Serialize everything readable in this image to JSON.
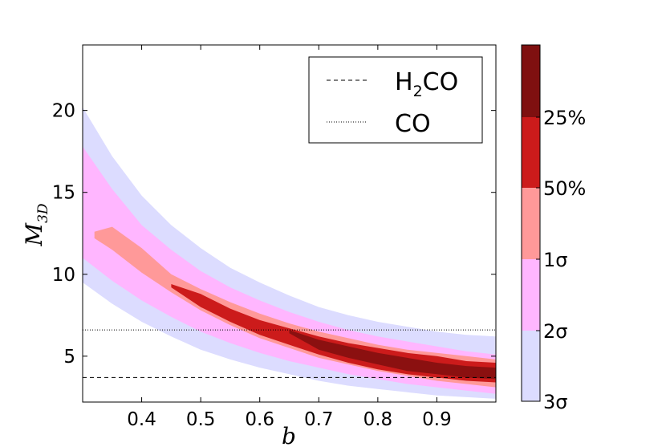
{
  "chart_data": {
    "type": "contour",
    "title": "",
    "xlabel": "b",
    "ylabel": "M",
    "ylabel_subscript": "3D",
    "xlim": [
      0.3,
      1.0
    ],
    "ylim": [
      2.2,
      24
    ],
    "xticks": [
      0.4,
      0.5,
      0.6,
      0.7,
      0.8,
      0.9
    ],
    "xtick_labels": [
      "0.4",
      "0.5",
      "0.6",
      "0.7",
      "0.8",
      "0.9"
    ],
    "yticks": [
      5,
      10,
      15,
      20
    ],
    "ytick_labels": [
      "5",
      "10",
      "15",
      "20"
    ],
    "hlines": [
      {
        "name": "H2CO",
        "label_main": "H",
        "label_sub": "2",
        "label_tail": "CO",
        "y": 3.7,
        "style": "dashed"
      },
      {
        "name": "CO",
        "label": "CO",
        "y": 6.6,
        "style": "dotted"
      }
    ],
    "legend_position": "top-right",
    "levels": [
      {
        "label": "3σ",
        "color": "#dcdcff",
        "upper": [
          [
            0.3,
            20.2
          ],
          [
            0.35,
            17.2
          ],
          [
            0.4,
            14.8
          ],
          [
            0.45,
            13.0
          ],
          [
            0.5,
            11.6
          ],
          [
            0.55,
            10.4
          ],
          [
            0.6,
            9.5
          ],
          [
            0.65,
            8.7
          ],
          [
            0.7,
            8.0
          ],
          [
            0.75,
            7.5
          ],
          [
            0.8,
            7.1
          ],
          [
            0.85,
            6.8
          ],
          [
            0.9,
            6.5
          ],
          [
            0.95,
            6.3
          ],
          [
            1.0,
            6.2
          ]
        ],
        "lower": [
          [
            0.3,
            9.5
          ],
          [
            0.35,
            8.2
          ],
          [
            0.4,
            7.1
          ],
          [
            0.45,
            6.2
          ],
          [
            0.5,
            5.4
          ],
          [
            0.55,
            4.8
          ],
          [
            0.6,
            4.3
          ],
          [
            0.65,
            3.9
          ],
          [
            0.7,
            3.5
          ],
          [
            0.75,
            3.2
          ],
          [
            0.8,
            3.0
          ],
          [
            0.85,
            2.8
          ],
          [
            0.9,
            2.6
          ],
          [
            0.95,
            2.5
          ],
          [
            1.0,
            2.4
          ]
        ]
      },
      {
        "label": "2σ",
        "color": "#ffb6ff",
        "upper": [
          [
            0.3,
            17.8
          ],
          [
            0.35,
            15.2
          ],
          [
            0.4,
            13.0
          ],
          [
            0.45,
            11.5
          ],
          [
            0.5,
            10.2
          ],
          [
            0.55,
            9.2
          ],
          [
            0.6,
            8.4
          ],
          [
            0.65,
            7.7
          ],
          [
            0.7,
            7.1
          ],
          [
            0.75,
            6.6
          ],
          [
            0.8,
            6.2
          ],
          [
            0.85,
            5.9
          ],
          [
            0.9,
            5.6
          ],
          [
            0.95,
            5.3
          ],
          [
            1.0,
            5.1
          ]
        ],
        "lower": [
          [
            0.3,
            11.0
          ],
          [
            0.35,
            9.6
          ],
          [
            0.4,
            8.4
          ],
          [
            0.45,
            7.4
          ],
          [
            0.5,
            6.5
          ],
          [
            0.55,
            5.8
          ],
          [
            0.6,
            5.2
          ],
          [
            0.65,
            4.7
          ],
          [
            0.7,
            4.3
          ],
          [
            0.75,
            3.9
          ],
          [
            0.8,
            3.6
          ],
          [
            0.85,
            3.3
          ],
          [
            0.9,
            3.1
          ],
          [
            0.95,
            2.9
          ],
          [
            1.0,
            2.7
          ]
        ]
      },
      {
        "label": "1σ",
        "color": "#ff9999",
        "upper": [
          [
            0.32,
            12.6
          ],
          [
            0.35,
            12.9
          ],
          [
            0.4,
            11.6
          ],
          [
            0.45,
            10.0
          ],
          [
            0.5,
            9.1
          ],
          [
            0.55,
            8.3
          ],
          [
            0.6,
            7.6
          ],
          [
            0.65,
            7.0
          ],
          [
            0.7,
            6.5
          ],
          [
            0.75,
            6.1
          ],
          [
            0.8,
            5.7
          ],
          [
            0.85,
            5.4
          ],
          [
            0.9,
            5.2
          ],
          [
            0.95,
            5.0
          ],
          [
            1.0,
            4.8
          ]
        ],
        "lower": [
          [
            0.32,
            12.2
          ],
          [
            0.35,
            11.5
          ],
          [
            0.4,
            10.1
          ],
          [
            0.45,
            8.9
          ],
          [
            0.5,
            7.8
          ],
          [
            0.55,
            6.9
          ],
          [
            0.6,
            6.1
          ],
          [
            0.65,
            5.5
          ],
          [
            0.7,
            4.9
          ],
          [
            0.75,
            4.5
          ],
          [
            0.8,
            4.1
          ],
          [
            0.85,
            3.8
          ],
          [
            0.9,
            3.5
          ],
          [
            0.95,
            3.3
          ],
          [
            1.0,
            3.1
          ]
        ]
      },
      {
        "label": "50%",
        "color": "#cc1b1b",
        "upper": [
          [
            0.45,
            9.4
          ],
          [
            0.5,
            8.8
          ],
          [
            0.55,
            7.9
          ],
          [
            0.6,
            7.2
          ],
          [
            0.65,
            6.7
          ],
          [
            0.7,
            6.2
          ],
          [
            0.75,
            5.8
          ],
          [
            0.8,
            5.5
          ],
          [
            0.85,
            5.2
          ],
          [
            0.9,
            5.0
          ],
          [
            0.95,
            4.7
          ],
          [
            1.0,
            4.6
          ]
        ],
        "lower": [
          [
            0.45,
            9.2
          ],
          [
            0.5,
            8.0
          ],
          [
            0.55,
            7.1
          ],
          [
            0.6,
            6.3
          ],
          [
            0.65,
            5.7
          ],
          [
            0.7,
            5.1
          ],
          [
            0.75,
            4.6
          ],
          [
            0.8,
            4.2
          ],
          [
            0.85,
            3.9
          ],
          [
            0.9,
            3.7
          ],
          [
            0.95,
            3.5
          ],
          [
            1.0,
            3.4
          ]
        ]
      },
      {
        "label": "25%",
        "color": "#8b1010",
        "upper": [
          [
            0.65,
            6.6
          ],
          [
            0.7,
            6.0
          ],
          [
            0.75,
            5.6
          ],
          [
            0.8,
            5.2
          ],
          [
            0.85,
            4.9
          ],
          [
            0.9,
            4.6
          ],
          [
            0.95,
            4.4
          ],
          [
            1.0,
            4.3
          ]
        ],
        "lower": [
          [
            0.65,
            6.4
          ],
          [
            0.7,
            5.4
          ],
          [
            0.75,
            4.9
          ],
          [
            0.8,
            4.5
          ],
          [
            0.85,
            4.1
          ],
          [
            0.9,
            3.9
          ],
          [
            0.95,
            3.7
          ],
          [
            1.0,
            3.6
          ]
        ]
      }
    ],
    "colorbar_colors": [
      "#dcdcff",
      "#ffb6ff",
      "#ff9999",
      "#cc1b1b",
      "#b31515",
      "#7f1010"
    ],
    "colorbar_labels": [
      "3σ",
      "2σ",
      "1σ",
      "50%",
      "25%"
    ]
  }
}
